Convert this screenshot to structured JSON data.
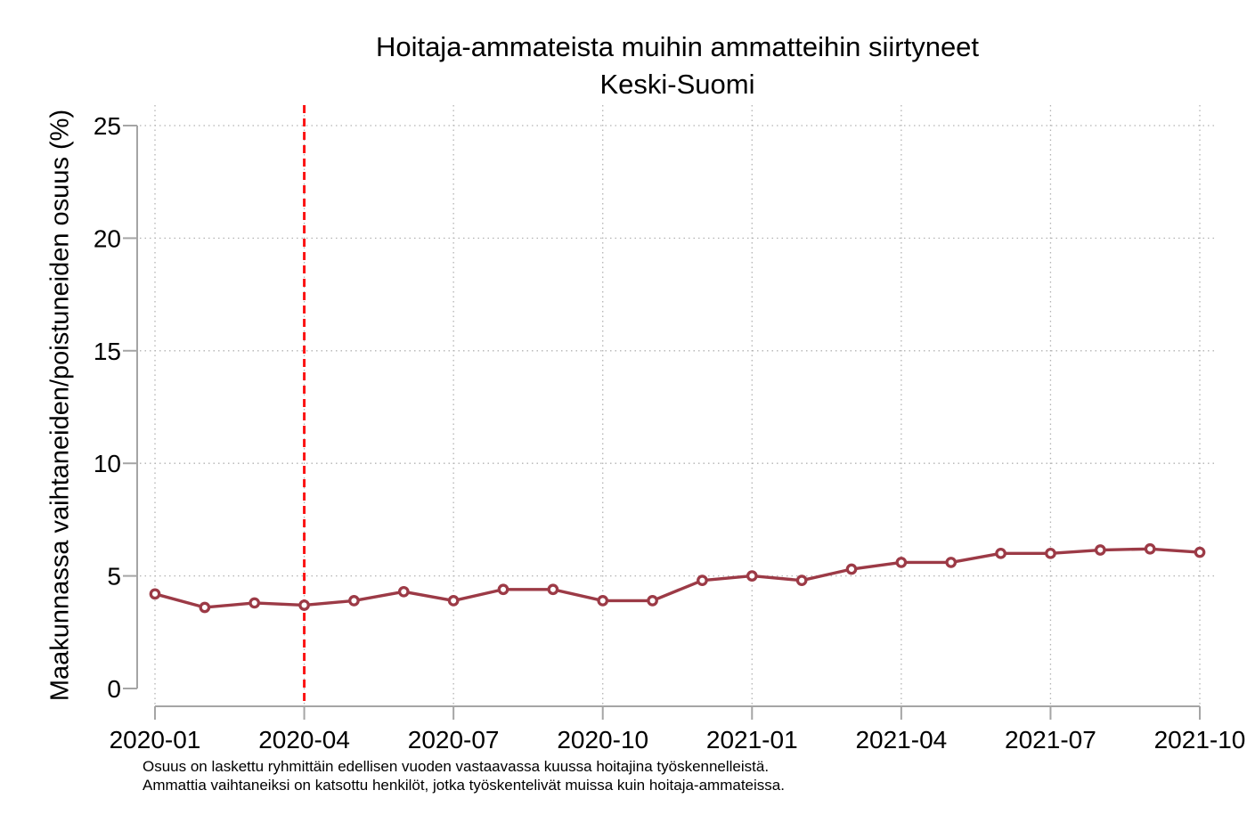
{
  "chart_data": {
    "type": "line",
    "title": "Hoitaja-ammateista muihin ammatteihin siirtyneet",
    "subtitle": "Keski-Suomi",
    "ylabel": "Maakunnassa vaihtaneiden/poistuneiden osuus (%)",
    "xlabel": "",
    "x": [
      "2020-01",
      "2020-02",
      "2020-03",
      "2020-04",
      "2020-05",
      "2020-06",
      "2020-07",
      "2020-08",
      "2020-09",
      "2020-10",
      "2020-11",
      "2020-12",
      "2021-01",
      "2021-02",
      "2021-03",
      "2021-04",
      "2021-05",
      "2021-06",
      "2021-07",
      "2021-08",
      "2021-09",
      "2021-10"
    ],
    "values": [
      4.2,
      3.6,
      3.8,
      3.7,
      3.9,
      4.3,
      3.9,
      4.4,
      4.4,
      3.9,
      3.9,
      4.8,
      5.0,
      4.8,
      5.3,
      5.6,
      5.6,
      6.0,
      6.0,
      6.15,
      6.2,
      6.05
    ],
    "x_tick_labels": [
      "2020-01",
      "2020-04",
      "2020-07",
      "2020-10",
      "2021-01",
      "2021-04",
      "2021-07",
      "2021-10"
    ],
    "y_ticks": [
      0,
      5,
      10,
      15,
      20,
      25
    ],
    "ylim": [
      0,
      25
    ],
    "legend": "none",
    "grid": {
      "style": "dotted",
      "color": "#b3b3b3",
      "horizontal_at": [
        5,
        10,
        15,
        20,
        25
      ],
      "vertical_at_labeled_x_ticks": true
    },
    "reference_line": {
      "axis": "x",
      "at": "2020-04",
      "style": "dashed",
      "color": "#fb1313"
    },
    "line_color": "#9c3a46",
    "marker": "open-circle",
    "marker_fill": "#ffffff",
    "axis_color": "#a5a5a5",
    "notes": [
      "Osuus on laskettu ryhmittäin edellisen vuoden vastaavassa kuussa hoitajina työskennelleistä.",
      "Ammattia vaihtaneiksi on katsottu henkilöt, jotka työskentelivät muissa kuin hoitaja-ammateissa."
    ]
  }
}
